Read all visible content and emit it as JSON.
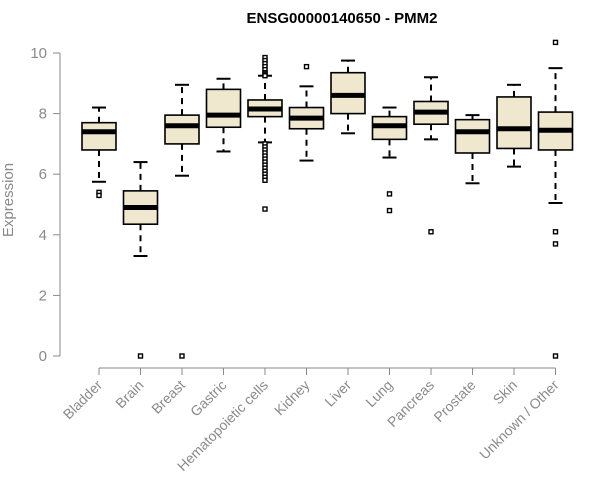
{
  "chart_data": {
    "type": "boxplot",
    "title": "ENSG00000140650 - PMM2",
    "ylabel": "Expression",
    "xlabel": "",
    "ylim": [
      0,
      10.5
    ],
    "yticks": [
      0,
      2,
      4,
      6,
      8,
      10
    ],
    "grid": false,
    "colors": {
      "box_fill": "#efe8cf",
      "stroke": "#000000",
      "median": "#000000",
      "axis": "#8a8a8a",
      "title": "#000000"
    },
    "categories": [
      "Bladder",
      "Brain",
      "Breast",
      "Gastric",
      "Hematopoietic cells",
      "Kidney",
      "Liver",
      "Lung",
      "Pancreas",
      "Prostate",
      "Skin",
      "Unknown / Other"
    ],
    "boxes": [
      {
        "category": "Bladder",
        "whisker_low": 5.75,
        "q1": 6.8,
        "median": 7.4,
        "q3": 7.7,
        "whisker_high": 8.2,
        "outliers": [
          5.4,
          5.3
        ]
      },
      {
        "category": "Brain",
        "whisker_low": 3.3,
        "q1": 4.35,
        "median": 4.9,
        "q3": 5.45,
        "whisker_high": 6.4,
        "outliers": [
          0
        ]
      },
      {
        "category": "Breast",
        "whisker_low": 5.95,
        "q1": 7.0,
        "median": 7.6,
        "q3": 7.95,
        "whisker_high": 8.95,
        "outliers": [
          0
        ]
      },
      {
        "category": "Gastric",
        "whisker_low": 6.75,
        "q1": 7.55,
        "median": 7.95,
        "q3": 8.8,
        "whisker_high": 9.15,
        "outliers": []
      },
      {
        "category": "Hematopoietic cells",
        "whisker_low": 7.05,
        "q1": 7.9,
        "median": 8.15,
        "q3": 8.45,
        "whisker_high": 9.25,
        "outliers": [
          9.85,
          9.75,
          9.65,
          9.55,
          9.45,
          9.35,
          9.3,
          9.25,
          7.0,
          6.9,
          6.8,
          6.7,
          6.6,
          6.5,
          6.4,
          6.3,
          6.2,
          6.1,
          6.0,
          5.9,
          5.8,
          4.85
        ]
      },
      {
        "category": "Kidney",
        "whisker_low": 6.45,
        "q1": 7.5,
        "median": 7.85,
        "q3": 8.2,
        "whisker_high": 8.9,
        "outliers": [
          9.55
        ]
      },
      {
        "category": "Liver",
        "whisker_low": 7.35,
        "q1": 8.0,
        "median": 8.6,
        "q3": 9.35,
        "whisker_high": 9.75,
        "outliers": []
      },
      {
        "category": "Lung",
        "whisker_low": 6.55,
        "q1": 7.15,
        "median": 7.6,
        "q3": 7.9,
        "whisker_high": 8.2,
        "outliers": [
          5.35,
          4.8
        ]
      },
      {
        "category": "Pancreas",
        "whisker_low": 7.15,
        "q1": 7.65,
        "median": 8.05,
        "q3": 8.4,
        "whisker_high": 9.2,
        "outliers": [
          4.1
        ]
      },
      {
        "category": "Prostate",
        "whisker_low": 5.7,
        "q1": 6.7,
        "median": 7.4,
        "q3": 7.8,
        "whisker_high": 7.95,
        "outliers": []
      },
      {
        "category": "Skin",
        "whisker_low": 6.25,
        "q1": 6.85,
        "median": 7.5,
        "q3": 8.55,
        "whisker_high": 8.95,
        "outliers": []
      },
      {
        "category": "Unknown / Other",
        "whisker_low": 5.05,
        "q1": 6.8,
        "median": 7.45,
        "q3": 8.05,
        "whisker_high": 9.5,
        "outliers": [
          10.35,
          4.1,
          3.7,
          0
        ]
      }
    ]
  }
}
